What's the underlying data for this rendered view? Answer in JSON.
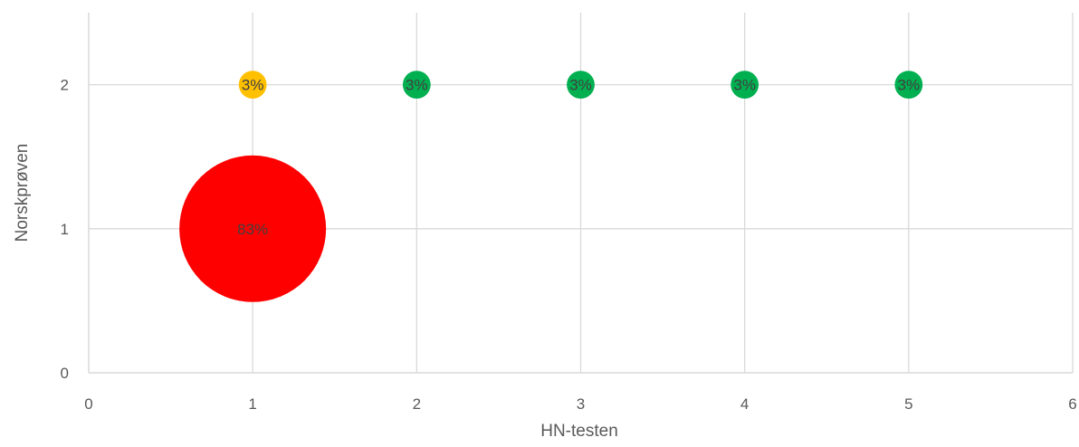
{
  "chart_data": {
    "type": "bubble",
    "xlabel": "HN-testen",
    "ylabel": "Norskprøven",
    "xlim": [
      0,
      6
    ],
    "ylim": [
      0,
      2.5
    ],
    "x_ticks": [
      "0",
      "1",
      "2",
      "3",
      "4",
      "5",
      "6"
    ],
    "y_ticks": [
      "0",
      "1",
      "2"
    ],
    "grid": true,
    "legend": "none",
    "points": [
      {
        "x": 1,
        "y": 1,
        "value": 83,
        "label": "83%",
        "color": "#FF0000"
      },
      {
        "x": 1,
        "y": 2,
        "value": 3,
        "label": "3%",
        "color": "#FFC000"
      },
      {
        "x": 2,
        "y": 2,
        "value": 3,
        "label": "3%",
        "color": "#00B050"
      },
      {
        "x": 3,
        "y": 2,
        "value": 3,
        "label": "3%",
        "color": "#00B050"
      },
      {
        "x": 4,
        "y": 2,
        "value": 3,
        "label": "3%",
        "color": "#00B050"
      },
      {
        "x": 5,
        "y": 2,
        "value": 3,
        "label": "3%",
        "color": "#00B050"
      }
    ]
  }
}
